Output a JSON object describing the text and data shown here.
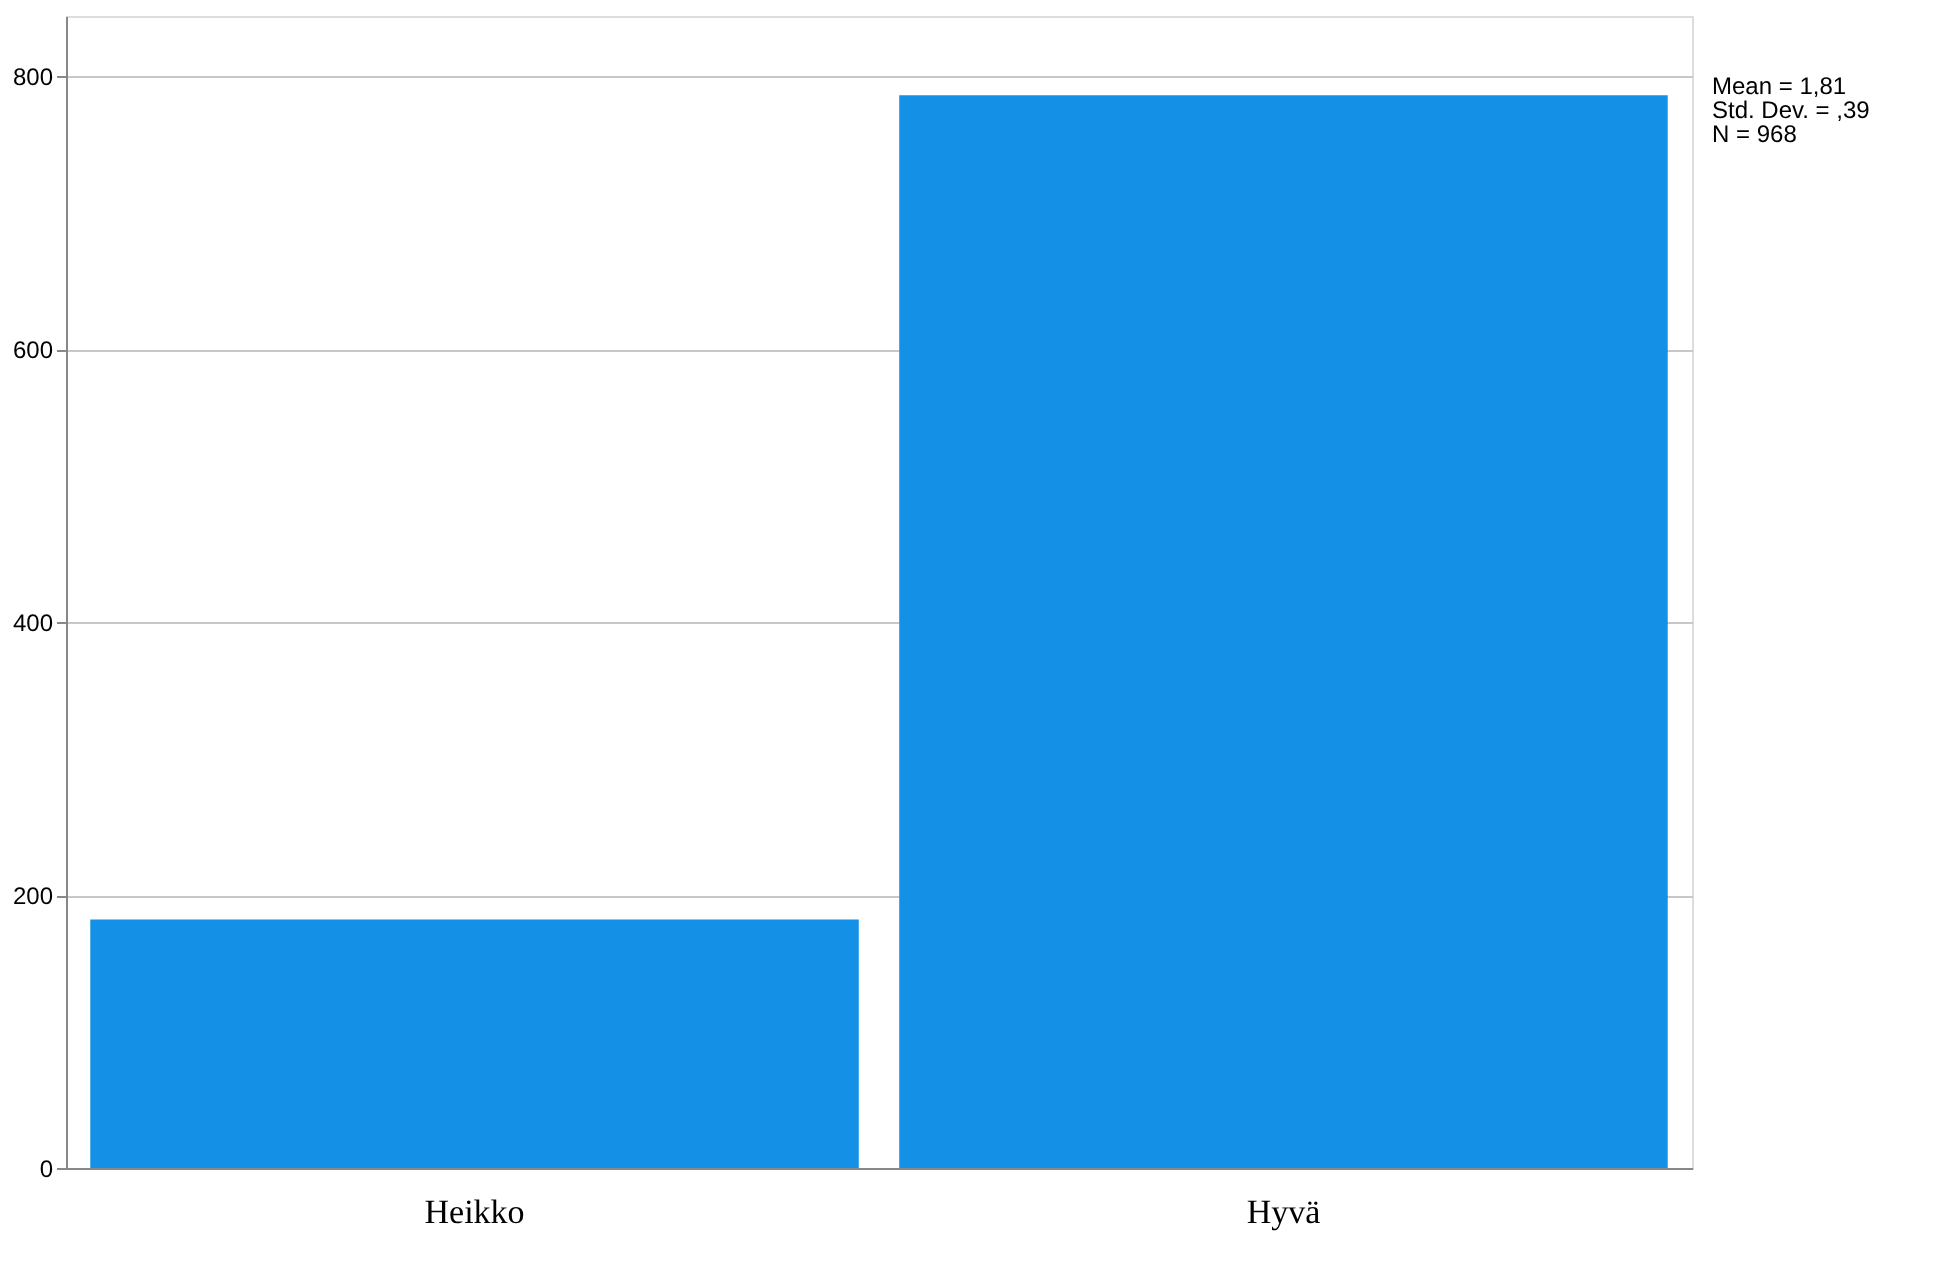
{
  "chart_data": {
    "type": "bar",
    "categories": [
      "Heikko",
      "Hyvä"
    ],
    "values": [
      182,
      786
    ],
    "color": "#1490e6",
    "ylim": [
      0,
      844
    ],
    "yticks": [
      0,
      200,
      400,
      600,
      800
    ],
    "grid": "y",
    "annotations": [
      "Mean = 1,81",
      "Std. Dev. = ,39",
      "N = 968"
    ]
  }
}
